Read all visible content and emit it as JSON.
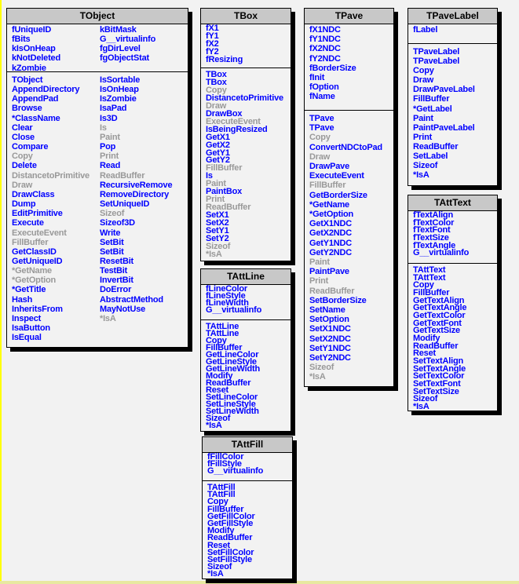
{
  "colors": {
    "member": "#0000ff",
    "inherited": "#999999",
    "header": "#c8c8c8",
    "background": "#f2f2f2"
  },
  "classes": [
    {
      "id": "tobject",
      "title": "TObject",
      "fields": [
        [
          "fUniqueID",
          "fBits",
          "kIsOnHeap",
          "kNotDeleted",
          "kZombie"
        ],
        [
          "kBitMask",
          "G__virtualinfo",
          "fgDirLevel",
          "fgObjectStat"
        ]
      ],
      "methods": [
        [
          {
            "n": "TObject"
          },
          {
            "n": "AppendDirectory"
          },
          {
            "n": "AppendPad"
          },
          {
            "n": "Browse"
          },
          {
            "n": "*ClassName"
          },
          {
            "n": "Clear"
          },
          {
            "n": "Close"
          },
          {
            "n": "Compare"
          },
          {
            "n": "Copy",
            "g": true
          },
          {
            "n": "Delete"
          },
          {
            "n": "DistancetoPrimitive",
            "g": true
          },
          {
            "n": "Draw",
            "g": true
          },
          {
            "n": "DrawClass"
          },
          {
            "n": "Dump"
          },
          {
            "n": "EditPrimitive"
          },
          {
            "n": "Execute"
          },
          {
            "n": "ExecuteEvent",
            "g": true
          },
          {
            "n": "FillBuffer",
            "g": true
          },
          {
            "n": "GetClassID"
          },
          {
            "n": "GetUniqueID"
          },
          {
            "n": "*GetName",
            "g": true
          },
          {
            "n": "*GetOption",
            "g": true
          },
          {
            "n": "*GetTitle"
          },
          {
            "n": "Hash"
          },
          {
            "n": "InheritsFrom"
          },
          {
            "n": "Inspect"
          },
          {
            "n": "IsaButton"
          },
          {
            "n": "IsEqual"
          }
        ],
        [
          {
            "n": "IsSortable"
          },
          {
            "n": "IsOnHeap"
          },
          {
            "n": "IsZombie"
          },
          {
            "n": "IsaPad"
          },
          {
            "n": "Is3D"
          },
          {
            "n": "Is",
            "g": true
          },
          {
            "n": "Paint",
            "g": true
          },
          {
            "n": "Pop"
          },
          {
            "n": "Print",
            "g": true
          },
          {
            "n": "Read"
          },
          {
            "n": "ReadBuffer",
            "g": true
          },
          {
            "n": "RecursiveRemove"
          },
          {
            "n": "RemoveDirectory"
          },
          {
            "n": "SetUniqueID"
          },
          {
            "n": "Sizeof",
            "g": true
          },
          {
            "n": "Sizeof3D"
          },
          {
            "n": "Write"
          },
          {
            "n": "SetBit"
          },
          {
            "n": "SetBit"
          },
          {
            "n": "ResetBit"
          },
          {
            "n": "TestBit"
          },
          {
            "n": "InvertBit"
          },
          {
            "n": "DoError"
          },
          {
            "n": "AbstractMethod"
          },
          {
            "n": "MayNotUse"
          },
          {
            "n": "*IsA",
            "g": true
          }
        ]
      ]
    },
    {
      "id": "tbox",
      "title": "TBox",
      "fields": [
        [
          "fX1",
          "fY1",
          "fX2",
          "fY2",
          "fResizing"
        ]
      ],
      "methods": [
        [
          {
            "n": "TBox"
          },
          {
            "n": "TBox"
          },
          {
            "n": "Copy",
            "g": true
          },
          {
            "n": "DistancetoPrimitive"
          },
          {
            "n": "Draw",
            "g": true
          },
          {
            "n": "DrawBox"
          },
          {
            "n": "ExecuteEvent",
            "g": true
          },
          {
            "n": "IsBeingResized"
          },
          {
            "n": "GetX1"
          },
          {
            "n": "GetX2"
          },
          {
            "n": "GetY1"
          },
          {
            "n": "GetY2"
          },
          {
            "n": "FillBuffer",
            "g": true
          },
          {
            "n": "Is"
          },
          {
            "n": "Paint",
            "g": true
          },
          {
            "n": "PaintBox"
          },
          {
            "n": "Print",
            "g": true
          },
          {
            "n": "ReadBuffer",
            "g": true
          },
          {
            "n": "SetX1"
          },
          {
            "n": "SetX2"
          },
          {
            "n": "SetY1"
          },
          {
            "n": "SetY2"
          },
          {
            "n": "Sizeof",
            "g": true
          },
          {
            "n": "*IsA",
            "g": true
          }
        ]
      ]
    },
    {
      "id": "tpave",
      "title": "TPave",
      "fields": [
        [
          "fX1NDC",
          "fY1NDC",
          "fX2NDC",
          "fY2NDC",
          "fBorderSize",
          "fInit",
          "fOption",
          "fName"
        ]
      ],
      "methods": [
        [
          {
            "n": "TPave"
          },
          {
            "n": "TPave"
          },
          {
            "n": "Copy",
            "g": true
          },
          {
            "n": "ConvertNDCtoPad"
          },
          {
            "n": "Draw",
            "g": true
          },
          {
            "n": "DrawPave"
          },
          {
            "n": "ExecuteEvent"
          },
          {
            "n": "FillBuffer",
            "g": true
          },
          {
            "n": "GetBorderSize"
          },
          {
            "n": "*GetName"
          },
          {
            "n": "*GetOption"
          },
          {
            "n": "GetX1NDC"
          },
          {
            "n": "GetX2NDC"
          },
          {
            "n": "GetY1NDC"
          },
          {
            "n": "GetY2NDC"
          },
          {
            "n": "Paint",
            "g": true
          },
          {
            "n": "PaintPave"
          },
          {
            "n": "Print",
            "g": true
          },
          {
            "n": "ReadBuffer",
            "g": true
          },
          {
            "n": "SetBorderSize"
          },
          {
            "n": "SetName"
          },
          {
            "n": "SetOption"
          },
          {
            "n": "SetX1NDC"
          },
          {
            "n": "SetX2NDC"
          },
          {
            "n": "SetY1NDC"
          },
          {
            "n": "SetY2NDC"
          },
          {
            "n": "Sizeof",
            "g": true
          },
          {
            "n": "*IsA",
            "g": true
          }
        ]
      ]
    },
    {
      "id": "tpavelabel",
      "title": "TPaveLabel",
      "fields": [
        [
          "fLabel"
        ]
      ],
      "methods": [
        [
          {
            "n": "TPaveLabel"
          },
          {
            "n": "TPaveLabel"
          },
          {
            "n": "Copy"
          },
          {
            "n": "Draw"
          },
          {
            "n": "DrawPaveLabel"
          },
          {
            "n": "FillBuffer"
          },
          {
            "n": "*GetLabel"
          },
          {
            "n": "Paint"
          },
          {
            "n": "PaintPaveLabel"
          },
          {
            "n": "Print"
          },
          {
            "n": "ReadBuffer"
          },
          {
            "n": "SetLabel"
          },
          {
            "n": "Sizeof"
          },
          {
            "n": "*IsA"
          }
        ]
      ]
    },
    {
      "id": "tatttext",
      "title": "TAttText",
      "fields": [
        [
          "fTextAlign",
          "fTextColor",
          "fTextFont",
          "fTextSize",
          "fTextAngle",
          "G__virtualinfo"
        ]
      ],
      "methods": [
        [
          {
            "n": "TAttText"
          },
          {
            "n": "TAttText"
          },
          {
            "n": "Copy"
          },
          {
            "n": "FillBuffer"
          },
          {
            "n": "GetTextAlign"
          },
          {
            "n": "GetTextAngle"
          },
          {
            "n": "GetTextColor"
          },
          {
            "n": "GetTextFont"
          },
          {
            "n": "GetTextSize"
          },
          {
            "n": "Modify"
          },
          {
            "n": "ReadBuffer"
          },
          {
            "n": "Reset"
          },
          {
            "n": "SetTextAlign"
          },
          {
            "n": "SetTextAngle"
          },
          {
            "n": "SetTextColor"
          },
          {
            "n": "SetTextFont"
          },
          {
            "n": "SetTextSize"
          },
          {
            "n": "Sizeof"
          },
          {
            "n": "*IsA"
          }
        ]
      ]
    },
    {
      "id": "tattline",
      "title": "TAttLine",
      "fields": [
        [
          "fLineColor",
          "fLineStyle",
          "fLineWidth",
          "G__virtualinfo"
        ]
      ],
      "methods": [
        [
          {
            "n": "TAttLine"
          },
          {
            "n": "TAttLine"
          },
          {
            "n": "Copy"
          },
          {
            "n": "FillBuffer"
          },
          {
            "n": "GetLineColor"
          },
          {
            "n": "GetLineStyle"
          },
          {
            "n": "GetLineWidth"
          },
          {
            "n": "Modify"
          },
          {
            "n": "ReadBuffer"
          },
          {
            "n": "Reset"
          },
          {
            "n": "SetLineColor"
          },
          {
            "n": "SetLineStyle"
          },
          {
            "n": "SetLineWidth"
          },
          {
            "n": "Sizeof"
          },
          {
            "n": "*IsA"
          }
        ]
      ]
    },
    {
      "id": "tattfill",
      "title": "TAttFill",
      "fields": [
        [
          "fFillColor",
          "fFillStyle",
          "G__virtualinfo"
        ]
      ],
      "methods": [
        [
          {
            "n": "TAttFill"
          },
          {
            "n": "TAttFill"
          },
          {
            "n": "Copy"
          },
          {
            "n": "FillBuffer"
          },
          {
            "n": "GetFillColor"
          },
          {
            "n": "GetFillStyle"
          },
          {
            "n": "Modify"
          },
          {
            "n": "ReadBuffer"
          },
          {
            "n": "Reset"
          },
          {
            "n": "SetFillColor"
          },
          {
            "n": "SetFillStyle"
          },
          {
            "n": "Sizeof"
          },
          {
            "n": "*IsA"
          }
        ]
      ]
    }
  ]
}
